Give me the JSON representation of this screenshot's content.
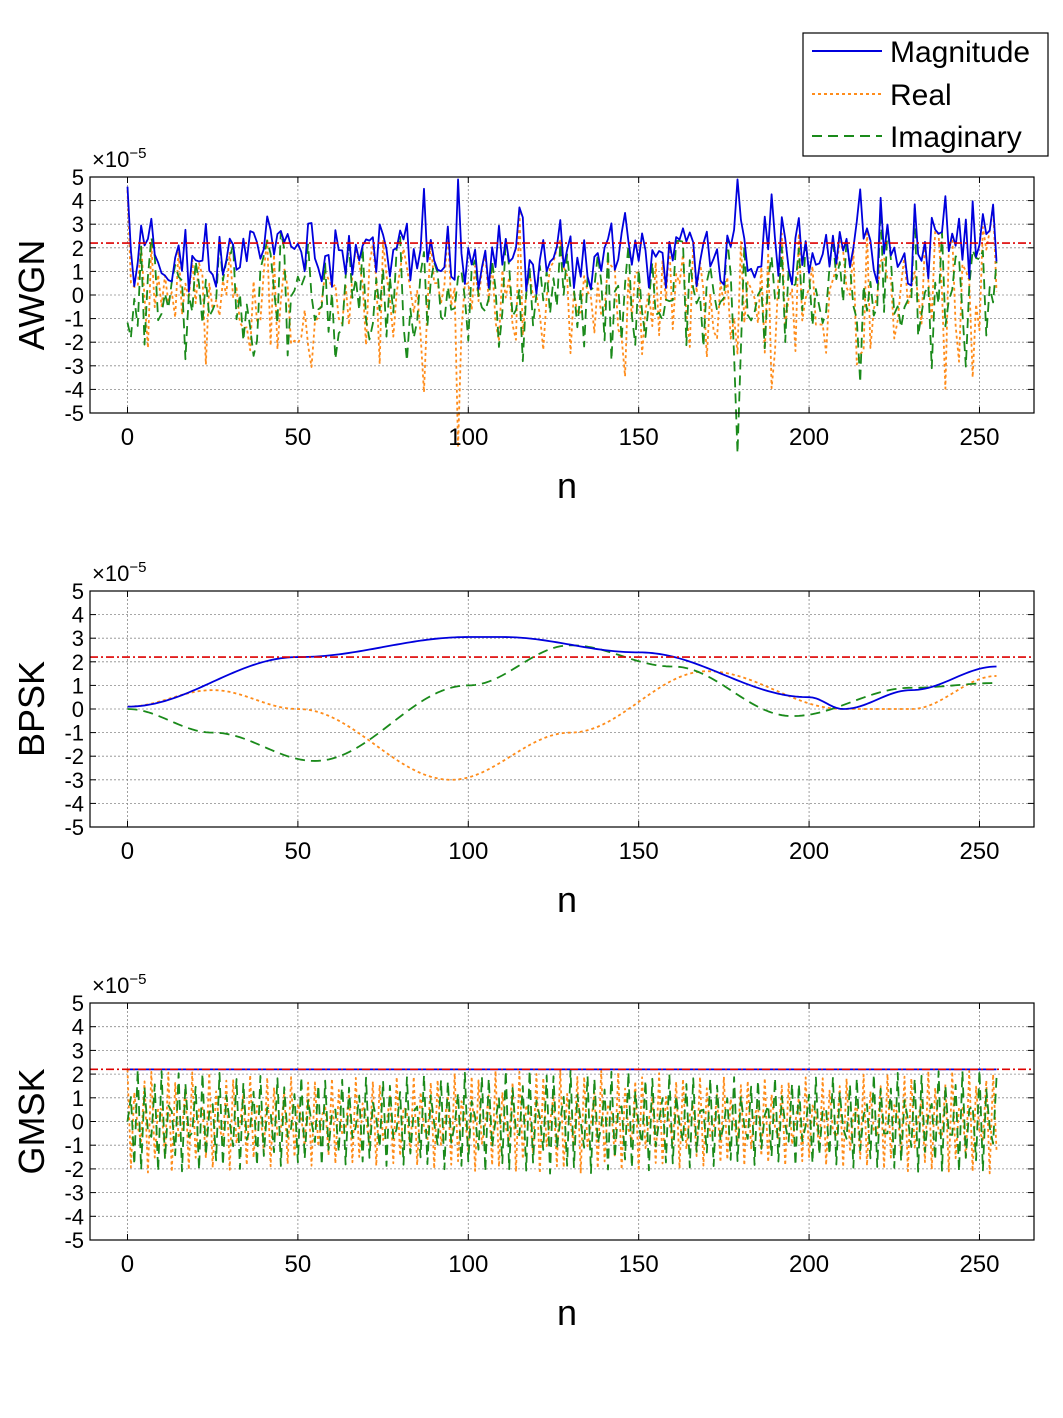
{
  "legend": {
    "placement": "top-right",
    "entries": [
      {
        "label": "Magnitude",
        "color": "#0000dd",
        "style": "solid"
      },
      {
        "label": "Real",
        "color": "#ff8c1a",
        "style": "dotted"
      },
      {
        "label": "Imaginary",
        "color": "#1a8a1a",
        "style": "dashed"
      }
    ]
  },
  "threshold": {
    "value": 2.2,
    "color": "#dd0000",
    "style": "dash-dot"
  },
  "chart_data": [
    {
      "type": "line",
      "title": "",
      "ylabel": "AWGN",
      "xlabel": "n",
      "multiplier_label": "×10",
      "multiplier_exp": "−5",
      "xlim": [
        -11,
        266
      ],
      "ylim": [
        -5,
        5
      ],
      "xticks": [
        0,
        50,
        100,
        150,
        200,
        250
      ],
      "yticks": [
        -5,
        -4,
        -3,
        -2,
        -1,
        0,
        1,
        2,
        3,
        4,
        5
      ],
      "grid": true,
      "n_points": 256,
      "signal": "noise",
      "peak": 4.9,
      "threshold": 2.2
    },
    {
      "type": "line",
      "title": "",
      "ylabel": "BPSK",
      "xlabel": "n",
      "multiplier_label": "×10",
      "multiplier_exp": "−5",
      "xlim": [
        -11,
        266
      ],
      "ylim": [
        -5,
        5
      ],
      "xticks": [
        0,
        50,
        100,
        150,
        200,
        250
      ],
      "yticks": [
        -5,
        -4,
        -3,
        -2,
        -1,
        0,
        1,
        2,
        3,
        4,
        5
      ],
      "grid": true,
      "n_points": 256,
      "signal": "smooth",
      "series": [
        {
          "name": "Magnitude",
          "x": [
            0,
            50,
            100,
            110,
            150,
            200,
            210,
            230,
            255
          ],
          "y": [
            0.1,
            2.2,
            3.05,
            3.05,
            2.4,
            0.5,
            0.0,
            0.8,
            1.8
          ]
        },
        {
          "name": "Real",
          "x": [
            0,
            25,
            50,
            95,
            130,
            170,
            210,
            230,
            255
          ],
          "y": [
            0.1,
            0.8,
            0.0,
            -3.0,
            -1.0,
            1.6,
            0.0,
            0.0,
            1.4
          ]
        },
        {
          "name": "Imaginary",
          "x": [
            0,
            25,
            55,
            100,
            130,
            160,
            195,
            230,
            255
          ],
          "y": [
            0.0,
            -1.0,
            -2.2,
            1.0,
            2.7,
            1.8,
            -0.3,
            0.9,
            1.1
          ]
        }
      ],
      "threshold": 2.2
    },
    {
      "type": "line",
      "title": "",
      "ylabel": "GMSK",
      "xlabel": "n",
      "multiplier_label": "×10",
      "multiplier_exp": "−5",
      "xlim": [
        -11,
        266
      ],
      "ylim": [
        -5,
        5
      ],
      "xticks": [
        0,
        50,
        100,
        150,
        200,
        250
      ],
      "yticks": [
        -5,
        -4,
        -3,
        -2,
        -1,
        0,
        1,
        2,
        3,
        4,
        5
      ],
      "grid": true,
      "n_points": 256,
      "signal": "oscillating",
      "amplitude": 2.2,
      "threshold": 2.2
    }
  ]
}
